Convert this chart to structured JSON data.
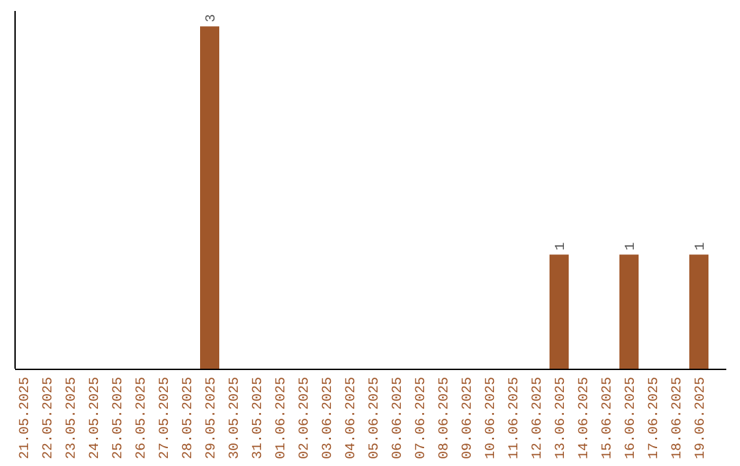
{
  "chart_data": {
    "type": "bar",
    "categories": [
      "21.05.2025",
      "22.05.2025",
      "23.05.2025",
      "24.05.2025",
      "25.05.2025",
      "26.05.2025",
      "27.05.2025",
      "28.05.2025",
      "29.05.2025",
      "30.05.2025",
      "31.05.2025",
      "01.06.2025",
      "02.06.2025",
      "03.06.2025",
      "04.06.2025",
      "05.06.2025",
      "06.06.2025",
      "07.06.2025",
      "08.06.2025",
      "09.06.2025",
      "10.06.2025",
      "11.06.2025",
      "12.06.2025",
      "13.06.2025",
      "14.06.2025",
      "15.06.2025",
      "16.06.2025",
      "17.06.2025",
      "18.06.2025",
      "19.06.2025"
    ],
    "values": [
      0,
      0,
      0,
      0,
      0,
      0,
      0,
      0,
      3,
      0,
      0,
      0,
      0,
      0,
      0,
      0,
      0,
      0,
      0,
      0,
      0,
      0,
      0,
      1,
      0,
      0,
      1,
      0,
      0,
      1
    ],
    "value_labels": [
      null,
      null,
      null,
      null,
      null,
      null,
      null,
      null,
      "3",
      null,
      null,
      null,
      null,
      null,
      null,
      null,
      null,
      null,
      null,
      null,
      null,
      null,
      null,
      "1",
      null,
      null,
      "1",
      null,
      null,
      "1"
    ],
    "color": "#a0572a",
    "tick_labels": "x"
  }
}
